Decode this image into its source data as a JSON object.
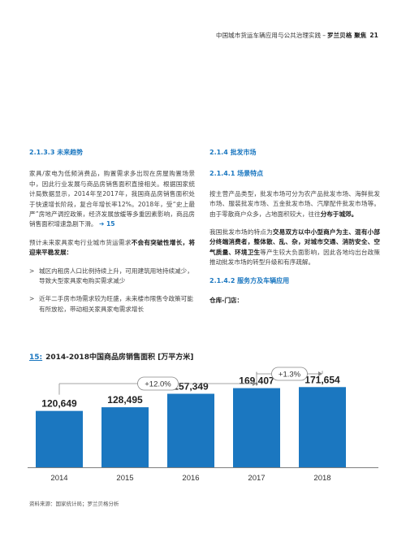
{
  "header": {
    "title": "中国城市货运车辆应用与公共治理实践",
    "separator": "–",
    "brand": "罗兰贝格 聚焦",
    "page_number": "21"
  },
  "left": {
    "heading": "2.1.3.3 未来趋势",
    "para1": "家具/家电为低频消费品，购置需求多出现在房屋购置场景中，因此行业发展与商品房销售面积直接相关。根据国家统计局数据显示，2014年至2017年，我国商品房销售面积处于快速增长阶段，复合年增长率12%。2018年，受“史上最严”房地产调控政策，经济发展放缓等多重因素影响，商品房销售面积增速急剧下滑。",
    "para1_link": "➔ 15",
    "para2_a": "预计未来家具家电行业城市货运需求",
    "para2_bold": "不会有突破性增长，将迎来平稳发展：",
    "bullets": [
      {
        "marker": ">",
        "text": "城区内租房人口比例持续上升，可用建筑用地持续减少，导致大型家具家电购买需求减少"
      },
      {
        "marker": ">",
        "text": "近年二手房市场需求较为旺盛，未来楼市限售令政策可能有所放松，带动相关家具家电需求增长"
      }
    ]
  },
  "right": {
    "heading": "2.1.4 批发市场",
    "sub1": "2.1.4.1 场景特点",
    "para1_a": "按主营产品类型，批发市场可分为农产品批发市场、海鲜批发市场、服装批发市场、五金批发市场、汽摩配件批发市场等。由于零散商户众多，占地面积较大，往往",
    "para1_bold": "分布于城郊。",
    "para2_a": "我国批发市场的特点为",
    "para2_bold": "交易双方以中小型商户为主、混有小部分终端消费者，整体散、乱、杂，对城市交通、消防安全、空气质量、环境卫生",
    "para2_b": "等产生较大负面影响，因此各地均出台政策推动批发市场的转型升级和有序疏解。",
    "sub2": "2.1.4.2 服务方及车辆应用",
    "para3_bold": "仓库-门店："
  },
  "chart_title": {
    "number": "15:",
    "text": "2014-2018中国商品房销售面积 [万平方米]"
  },
  "chart_data": {
    "type": "bar",
    "categories": [
      "2014",
      "2015",
      "2016",
      "2017",
      "2018"
    ],
    "values": [
      120649,
      128495,
      157349,
      169407,
      171654
    ],
    "value_labels": [
      "120,649",
      "128,495",
      "157,349",
      "169,407",
      "171,654"
    ],
    "annotations": [
      {
        "label": "+12.0%",
        "from": "2014",
        "to": "2017"
      },
      {
        "label": "+1.3%",
        "from": "2017",
        "to": "2018"
      }
    ],
    "bar_color": "#1b77c0",
    "title": "2014-2018中国商品房销售面积 [万平方米]",
    "ylim": [
      0,
      200000
    ]
  },
  "source": "资料来源：国家统计局；罗兰贝格分析"
}
